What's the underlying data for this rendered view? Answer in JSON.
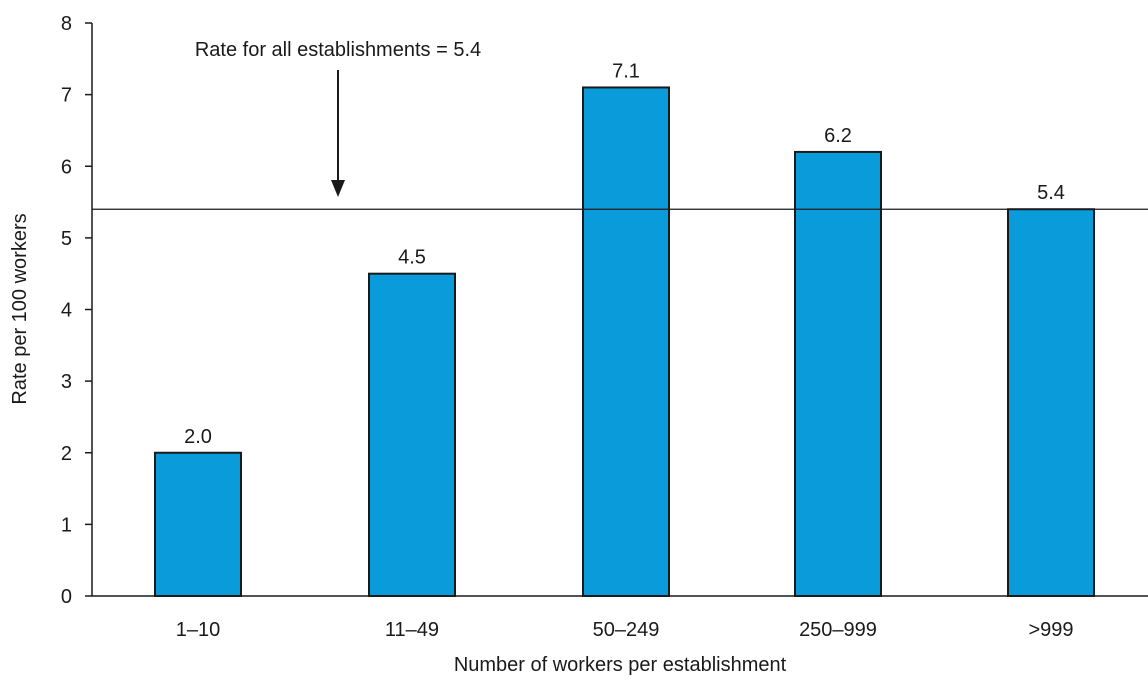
{
  "chart_data": {
    "type": "bar",
    "categories": [
      "1–10",
      "11–49",
      "50–249",
      "250–999",
      ">999"
    ],
    "values": [
      2.0,
      4.5,
      7.1,
      6.2,
      5.4
    ],
    "value_labels": [
      "2.0",
      "4.5",
      "7.1",
      "6.2",
      "5.4"
    ],
    "title": "",
    "xlabel": "Number of workers per establishment",
    "ylabel": "Rate per 100 workers",
    "ylim": [
      0,
      8
    ],
    "yticks": [
      0,
      1,
      2,
      3,
      4,
      5,
      6,
      7,
      8
    ],
    "grid": false,
    "bar_color": "#0A9BDB",
    "reference_line": {
      "value": 5.4,
      "label": "Rate for all establishments = 5.4"
    }
  }
}
